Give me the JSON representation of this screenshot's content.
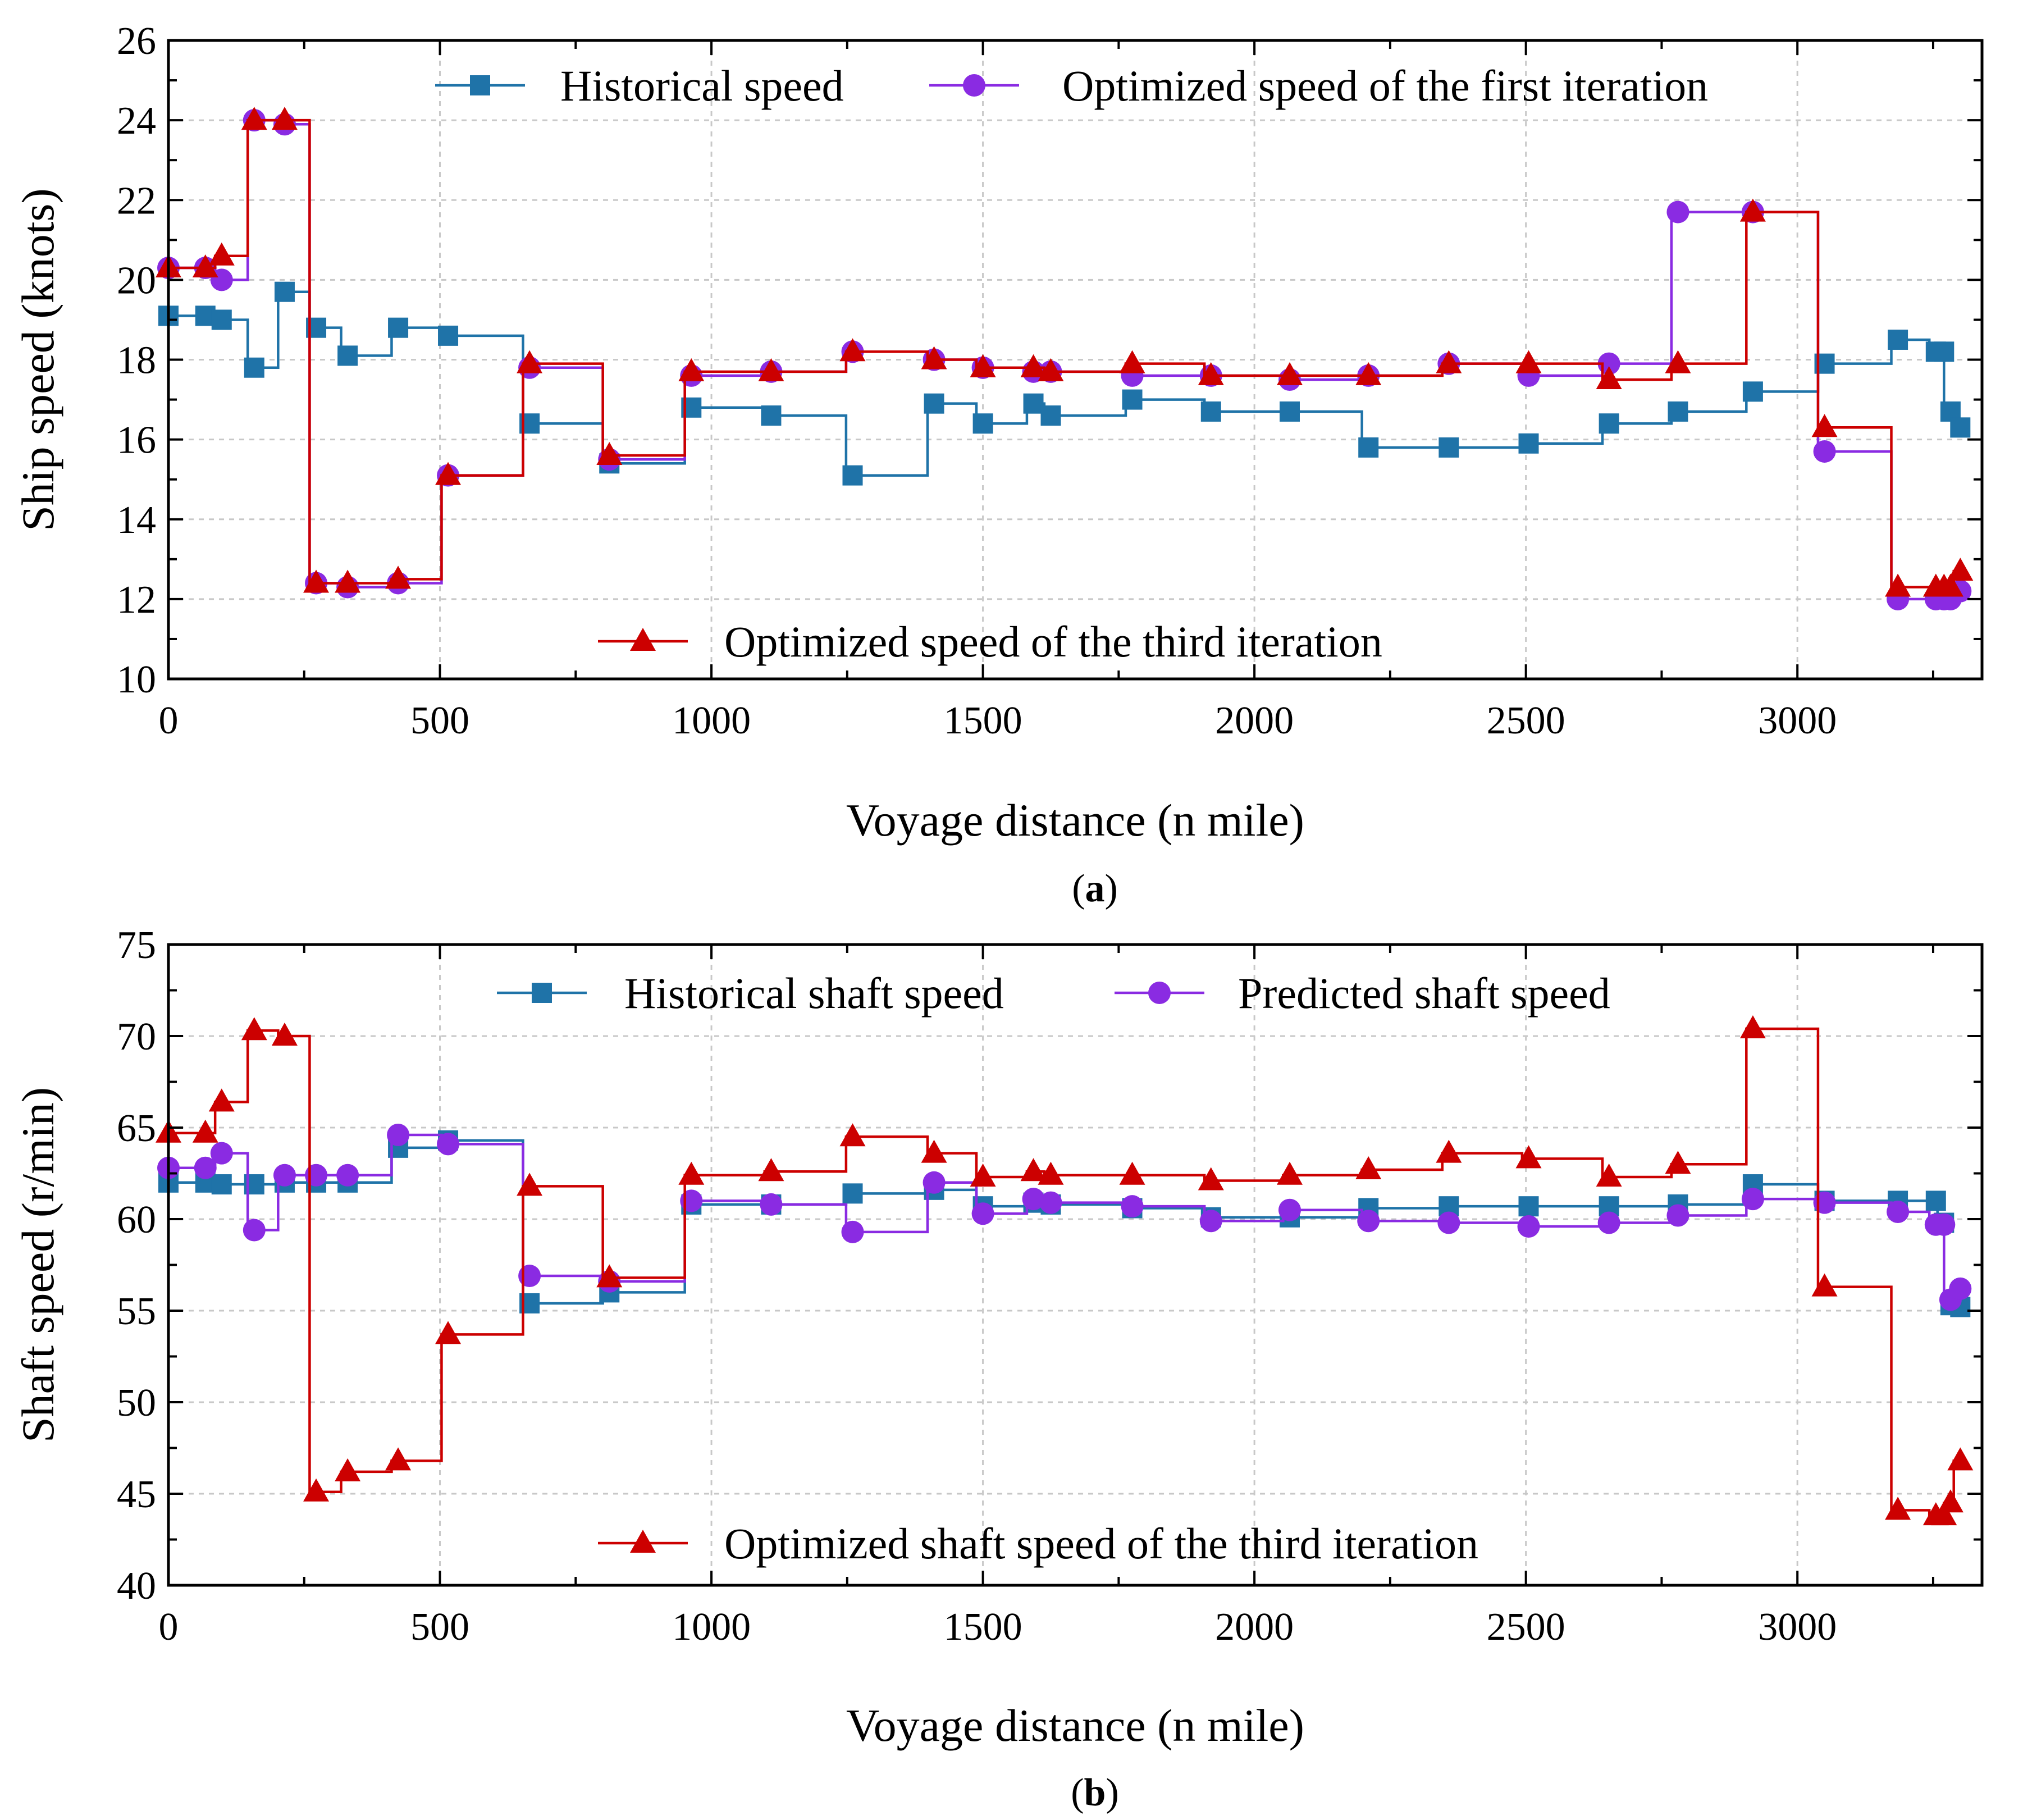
{
  "chart_data": [
    {
      "type": "line",
      "step": true,
      "panel_label": "(a)",
      "panel_letter": "a",
      "xlabel": "Voyage distance (n mile)",
      "ylabel": "Ship speed (knots)",
      "xlim": [
        0,
        3340
      ],
      "ylim": [
        10,
        26
      ],
      "xticks": [
        0,
        500,
        1000,
        1500,
        2000,
        2500,
        3000
      ],
      "yticks": [
        10,
        12,
        14,
        16,
        18,
        20,
        22,
        24,
        26
      ],
      "grid": true,
      "x": [
        0,
        68,
        98,
        158,
        214,
        272,
        330,
        423,
        515,
        665,
        812,
        963,
        1110,
        1260,
        1410,
        1500,
        1593,
        1625,
        1775,
        1920,
        2065,
        2210,
        2358,
        2505,
        2653,
        2780,
        2918,
        3050,
        3185,
        3255,
        3270,
        3282,
        3300
      ],
      "series": [
        {
          "name": "Historical speed",
          "color": "#1f73a8",
          "marker": "square",
          "values": [
            19.1,
            19.1,
            19.0,
            17.8,
            19.7,
            18.8,
            18.1,
            18.8,
            18.6,
            16.4,
            15.4,
            16.8,
            16.6,
            15.1,
            16.9,
            16.4,
            16.9,
            16.6,
            17.0,
            16.7,
            16.7,
            15.8,
            15.8,
            15.9,
            16.4,
            16.7,
            17.2,
            17.9,
            18.5,
            18.2,
            18.2,
            16.7,
            16.3
          ]
        },
        {
          "name": "Optimized speed of the first iteration",
          "color": "#8a2be2",
          "marker": "circle",
          "values": [
            20.3,
            20.3,
            20.0,
            24.0,
            23.9,
            12.4,
            12.3,
            12.4,
            15.1,
            17.8,
            15.5,
            17.6,
            17.7,
            18.2,
            18.0,
            17.8,
            17.7,
            17.7,
            17.6,
            17.6,
            17.5,
            17.6,
            17.9,
            17.6,
            17.9,
            21.7,
            21.7,
            15.7,
            12.0,
            12.0,
            12.0,
            12.0,
            12.2
          ]
        },
        {
          "name": "Optimized speed of the third iteration",
          "color": "#cc0000",
          "marker": "triangle",
          "values": [
            20.3,
            20.3,
            20.6,
            24.0,
            24.0,
            12.4,
            12.4,
            12.5,
            15.1,
            17.9,
            15.6,
            17.7,
            17.7,
            18.2,
            18.0,
            17.8,
            17.8,
            17.7,
            17.9,
            17.6,
            17.6,
            17.6,
            17.9,
            17.9,
            17.5,
            17.9,
            21.7,
            16.3,
            12.3,
            12.3,
            12.3,
            12.3,
            12.7
          ]
        }
      ]
    },
    {
      "type": "line",
      "step": true,
      "panel_label": "(b)",
      "panel_letter": "b",
      "xlabel": "Voyage distance (n mile)",
      "ylabel": "Shaft speed (r/min)",
      "xlim": [
        0,
        3340
      ],
      "ylim": [
        40,
        75
      ],
      "xticks": [
        0,
        500,
        1000,
        1500,
        2000,
        2500,
        3000
      ],
      "yticks": [
        40,
        45,
        50,
        55,
        60,
        65,
        70,
        75
      ],
      "grid": true,
      "x": [
        0,
        68,
        98,
        158,
        214,
        272,
        330,
        423,
        515,
        665,
        812,
        963,
        1110,
        1260,
        1410,
        1500,
        1593,
        1625,
        1775,
        1920,
        2065,
        2210,
        2358,
        2505,
        2653,
        2780,
        2918,
        3050,
        3185,
        3255,
        3270,
        3282,
        3300
      ],
      "series": [
        {
          "name": "Historical shaft speed",
          "color": "#1f73a8",
          "marker": "square",
          "values": [
            62.0,
            62.0,
            61.9,
            61.9,
            62.0,
            62.0,
            62.0,
            63.9,
            64.3,
            55.4,
            56.0,
            60.8,
            60.8,
            61.4,
            61.6,
            60.7,
            60.9,
            60.8,
            60.6,
            60.1,
            60.1,
            60.6,
            60.7,
            60.7,
            60.7,
            60.8,
            61.9,
            61.0,
            61.0,
            61.0,
            59.8,
            55.3,
            55.2
          ]
        },
        {
          "name": "Predicted shaft speed",
          "color": "#8a2be2",
          "marker": "circle",
          "values": [
            62.8,
            62.8,
            63.6,
            59.4,
            62.4,
            62.4,
            62.4,
            64.6,
            64.1,
            56.9,
            56.6,
            61.0,
            60.8,
            59.3,
            62.0,
            60.3,
            61.1,
            60.9,
            60.7,
            59.9,
            60.5,
            59.9,
            59.8,
            59.6,
            59.8,
            60.2,
            61.1,
            60.9,
            60.4,
            59.7,
            59.7,
            55.6,
            56.2
          ]
        },
        {
          "name": "Optimized shaft speed of the third iteration",
          "color": "#cc0000",
          "marker": "triangle",
          "values": [
            64.7,
            64.7,
            66.4,
            70.3,
            70.0,
            45.1,
            46.2,
            46.8,
            53.7,
            61.8,
            56.8,
            62.4,
            62.6,
            64.5,
            63.6,
            62.3,
            62.6,
            62.4,
            62.4,
            62.1,
            62.4,
            62.7,
            63.6,
            63.3,
            62.3,
            63.0,
            70.4,
            56.3,
            44.1,
            43.8,
            43.8,
            44.5,
            46.8
          ]
        }
      ]
    }
  ]
}
